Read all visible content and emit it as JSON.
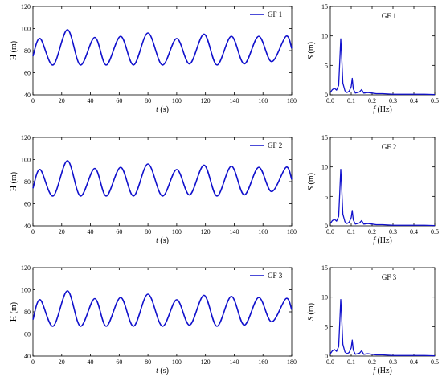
{
  "chart_data": [
    {
      "type": "line",
      "panel": "time",
      "title": "",
      "xlabel": "t (s)",
      "ylabel": "H (m)",
      "xlim": [
        0,
        180
      ],
      "ylim": [
        40,
        120
      ],
      "xticks": [
        0,
        20,
        40,
        60,
        80,
        100,
        120,
        140,
        160,
        180
      ],
      "yticks": [
        40,
        60,
        80,
        100,
        120
      ],
      "legend": "top-right",
      "series": [
        {
          "name": "GF 1",
          "color": "#1010cc",
          "x": [
            0,
            5,
            14,
            24,
            33,
            43,
            51,
            61,
            70,
            80,
            90,
            100,
            109,
            119,
            128,
            138,
            147,
            157,
            166,
            176,
            180
          ],
          "y": [
            75,
            91,
            67,
            99,
            67,
            92,
            67,
            93,
            67,
            96,
            67,
            91,
            68,
            95,
            67,
            93,
            68,
            93,
            70,
            93,
            82
          ]
        }
      ]
    },
    {
      "type": "line",
      "panel": "spectrum",
      "title": "GF 1",
      "xlabel": "f (Hz)",
      "ylabel": "S (m)",
      "xlim": [
        0,
        0.5
      ],
      "ylim": [
        0,
        15
      ],
      "xticks": [
        0.0,
        0.1,
        0.2,
        0.3,
        0.4,
        0.5
      ],
      "yticks": [
        0,
        5,
        10,
        15
      ],
      "series": [
        {
          "name": "",
          "color": "#1010cc",
          "x": [
            0.0,
            0.01,
            0.02,
            0.03,
            0.04,
            0.045,
            0.05,
            0.055,
            0.06,
            0.07,
            0.08,
            0.09,
            0.1,
            0.105,
            0.11,
            0.12,
            0.14,
            0.15,
            0.16,
            0.18,
            0.2,
            0.22,
            0.25,
            0.3,
            0.35,
            0.4,
            0.45,
            0.5
          ],
          "y": [
            0.4,
            0.9,
            1.1,
            0.8,
            1.6,
            5.5,
            9.5,
            6.0,
            2.0,
            0.7,
            0.4,
            0.6,
            1.4,
            2.8,
            1.0,
            0.3,
            0.5,
            0.9,
            0.3,
            0.4,
            0.3,
            0.2,
            0.2,
            0.1,
            0.1,
            0.1,
            0.1,
            0.05
          ]
        }
      ]
    },
    {
      "type": "line",
      "panel": "time",
      "title": "",
      "xlabel": "t (s)",
      "ylabel": "H (m)",
      "xlim": [
        0,
        180
      ],
      "ylim": [
        40,
        120
      ],
      "xticks": [
        0,
        20,
        40,
        60,
        80,
        100,
        120,
        140,
        160,
        180
      ],
      "yticks": [
        40,
        60,
        80,
        100,
        120
      ],
      "legend": "top-right",
      "series": [
        {
          "name": "GF 2",
          "color": "#1010cc",
          "x": [
            0,
            5,
            14,
            24,
            33,
            43,
            51,
            61,
            70,
            80,
            90,
            100,
            109,
            119,
            128,
            138,
            147,
            157,
            166,
            176,
            180
          ],
          "y": [
            74,
            91,
            67,
            99,
            67,
            92,
            67,
            93,
            67,
            96,
            67,
            91,
            68,
            95,
            67,
            94,
            68,
            93,
            71,
            93,
            82
          ]
        }
      ]
    },
    {
      "type": "line",
      "panel": "spectrum",
      "title": "GF 2",
      "xlabel": "f (Hz)",
      "ylabel": "S (m)",
      "xlim": [
        0,
        0.5
      ],
      "ylim": [
        0,
        15
      ],
      "xticks": [
        0.0,
        0.1,
        0.2,
        0.3,
        0.4,
        0.5
      ],
      "yticks": [
        0,
        5,
        10,
        15
      ],
      "series": [
        {
          "name": "",
          "color": "#1010cc",
          "x": [
            0.0,
            0.01,
            0.02,
            0.03,
            0.04,
            0.045,
            0.05,
            0.055,
            0.06,
            0.07,
            0.08,
            0.09,
            0.1,
            0.105,
            0.11,
            0.12,
            0.14,
            0.15,
            0.16,
            0.18,
            0.2,
            0.22,
            0.25,
            0.3,
            0.35,
            0.4,
            0.45,
            0.5
          ],
          "y": [
            0.4,
            0.9,
            1.1,
            0.8,
            1.6,
            5.5,
            9.6,
            6.0,
            2.0,
            0.7,
            0.4,
            0.6,
            1.4,
            2.6,
            1.0,
            0.3,
            0.5,
            0.9,
            0.3,
            0.4,
            0.3,
            0.2,
            0.2,
            0.1,
            0.1,
            0.1,
            0.1,
            0.05
          ]
        }
      ]
    },
    {
      "type": "line",
      "panel": "time",
      "title": "",
      "xlabel": "t (s)",
      "ylabel": "H (m)",
      "xlim": [
        0,
        180
      ],
      "ylim": [
        40,
        120
      ],
      "xticks": [
        0,
        20,
        40,
        60,
        80,
        100,
        120,
        140,
        160,
        180
      ],
      "yticks": [
        40,
        60,
        80,
        100,
        120
      ],
      "legend": "top-right",
      "series": [
        {
          "name": "GF 3",
          "color": "#1010cc",
          "x": [
            0,
            5,
            14,
            24,
            33,
            43,
            51,
            61,
            70,
            80,
            90,
            100,
            109,
            119,
            128,
            138,
            147,
            157,
            166,
            176,
            180
          ],
          "y": [
            73,
            91,
            67,
            99,
            67,
            92,
            67,
            93,
            67,
            96,
            67,
            91,
            68,
            95,
            67,
            94,
            68,
            93,
            71,
            92,
            82
          ]
        }
      ]
    },
    {
      "type": "line",
      "panel": "spectrum",
      "title": "GF 3",
      "xlabel": "f (Hz)",
      "ylabel": "S (m)",
      "xlim": [
        0,
        0.5
      ],
      "ylim": [
        0,
        15
      ],
      "xticks": [
        0.0,
        0.1,
        0.2,
        0.3,
        0.4,
        0.5
      ],
      "yticks": [
        0,
        5,
        10,
        15
      ],
      "series": [
        {
          "name": "",
          "color": "#1010cc",
          "x": [
            0.0,
            0.01,
            0.02,
            0.03,
            0.04,
            0.045,
            0.05,
            0.055,
            0.06,
            0.07,
            0.08,
            0.09,
            0.1,
            0.105,
            0.11,
            0.12,
            0.14,
            0.15,
            0.16,
            0.18,
            0.2,
            0.22,
            0.25,
            0.3,
            0.35,
            0.4,
            0.45,
            0.5
          ],
          "y": [
            0.4,
            0.9,
            1.1,
            0.8,
            1.6,
            5.5,
            9.6,
            6.0,
            2.0,
            0.7,
            0.4,
            0.6,
            1.4,
            2.7,
            1.0,
            0.3,
            0.5,
            0.9,
            0.3,
            0.4,
            0.3,
            0.2,
            0.2,
            0.1,
            0.1,
            0.1,
            0.1,
            0.05
          ]
        }
      ]
    }
  ]
}
